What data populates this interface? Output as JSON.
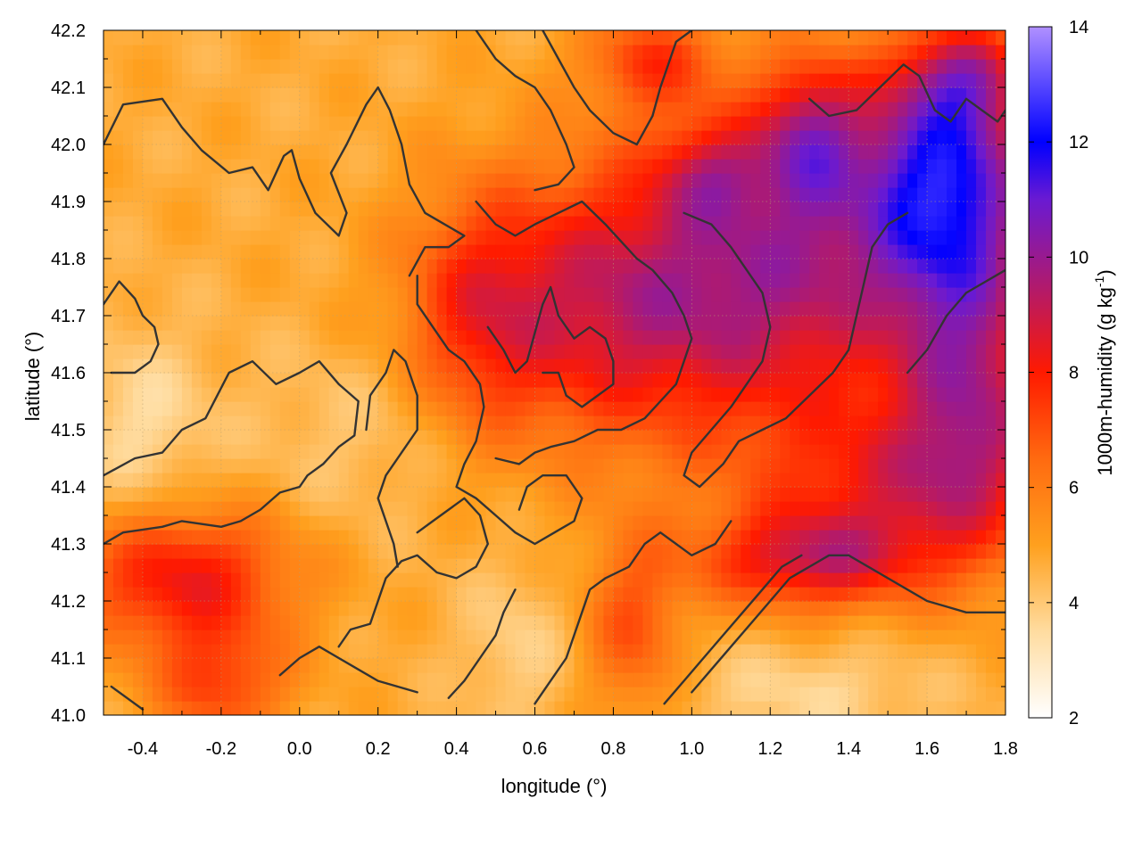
{
  "chart_data": {
    "type": "heatmap",
    "title": "",
    "xlabel": "longitude (°)",
    "ylabel": "latitude (°)",
    "colorbar_label_main": "1000m-humidity (g kg",
    "colorbar_label_sup": "-1",
    "colorbar_label_end": ")",
    "xlim": [
      -0.5,
      1.8
    ],
    "ylim": [
      41.0,
      42.2
    ],
    "clim": [
      2,
      14
    ],
    "grid": true,
    "x_ticks": [
      {
        "value": -0.4,
        "label": "-0.4"
      },
      {
        "value": -0.2,
        "label": "-0.2"
      },
      {
        "value": 0.0,
        "label": "0.0"
      },
      {
        "value": 0.2,
        "label": "0.2"
      },
      {
        "value": 0.4,
        "label": "0.4"
      },
      {
        "value": 0.6,
        "label": "0.6"
      },
      {
        "value": 0.8,
        "label": "0.8"
      },
      {
        "value": 1.0,
        "label": "1.0"
      },
      {
        "value": 1.2,
        "label": "1.2"
      },
      {
        "value": 1.4,
        "label": "1.4"
      },
      {
        "value": 1.6,
        "label": "1.6"
      },
      {
        "value": 1.8,
        "label": "1.8"
      }
    ],
    "y_ticks": [
      {
        "value": 41.0,
        "label": "41.0"
      },
      {
        "value": 41.1,
        "label": "41.1"
      },
      {
        "value": 41.2,
        "label": "41.2"
      },
      {
        "value": 41.3,
        "label": "41.3"
      },
      {
        "value": 41.4,
        "label": "41.4"
      },
      {
        "value": 41.5,
        "label": "41.5"
      },
      {
        "value": 41.6,
        "label": "41.6"
      },
      {
        "value": 41.7,
        "label": "41.7"
      },
      {
        "value": 41.8,
        "label": "41.8"
      },
      {
        "value": 41.9,
        "label": "41.9"
      },
      {
        "value": 42.0,
        "label": "42.0"
      },
      {
        "value": 42.1,
        "label": "42.1"
      },
      {
        "value": 42.2,
        "label": "42.2"
      }
    ],
    "colorbar_ticks": [
      {
        "value": 2,
        "label": "2"
      },
      {
        "value": 4,
        "label": "4"
      },
      {
        "value": 6,
        "label": "6"
      },
      {
        "value": 8,
        "label": "8"
      },
      {
        "value": 10,
        "label": "10"
      },
      {
        "value": 12,
        "label": "12"
      },
      {
        "value": 14,
        "label": "14"
      }
    ],
    "colormap": [
      {
        "value": 2,
        "color": "#ffffff"
      },
      {
        "value": 3.5,
        "color": "#ffdca0"
      },
      {
        "value": 5,
        "color": "#ffa01e"
      },
      {
        "value": 6.5,
        "color": "#ff6a10"
      },
      {
        "value": 8,
        "color": "#ff1a00"
      },
      {
        "value": 9.5,
        "color": "#b01a6e"
      },
      {
        "value": 11,
        "color": "#6a1ad2"
      },
      {
        "value": 12,
        "color": "#0000ff"
      },
      {
        "value": 14,
        "color": "#b090ff"
      }
    ],
    "field_blobs": [
      {
        "lon": 0.75,
        "lat": 41.72,
        "slon": 0.28,
        "slat": 0.17,
        "amp": 3.6
      },
      {
        "lon": 0.45,
        "lat": 41.7,
        "slon": 0.12,
        "slat": 0.14,
        "amp": 1.8
      },
      {
        "lon": 1.25,
        "lat": 41.78,
        "slon": 0.28,
        "slat": 0.2,
        "amp": 4.2
      },
      {
        "lon": 1.65,
        "lat": 41.95,
        "slon": 0.16,
        "slat": 0.15,
        "amp": 6.0
      },
      {
        "lon": 1.3,
        "lat": 42.02,
        "slon": 0.09,
        "slat": 0.09,
        "amp": 3.2
      },
      {
        "lon": 1.72,
        "lat": 41.58,
        "slon": 0.14,
        "slat": 0.2,
        "amp": 4.0
      },
      {
        "lon": 1.5,
        "lat": 41.4,
        "slon": 0.25,
        "slat": 0.1,
        "amp": 2.6
      },
      {
        "lon": 1.3,
        "lat": 41.27,
        "slon": 0.2,
        "slat": 0.06,
        "amp": 3.6
      },
      {
        "lon": -0.3,
        "lat": 41.24,
        "slon": 0.2,
        "slat": 0.09,
        "amp": 3.6
      },
      {
        "lon": -0.2,
        "lat": 41.05,
        "slon": 0.12,
        "slat": 0.07,
        "amp": 2.4
      },
      {
        "lon": 0.85,
        "lat": 41.15,
        "slon": 0.09,
        "slat": 0.12,
        "amp": 2.2
      },
      {
        "lon": 1.05,
        "lat": 41.95,
        "slon": 0.1,
        "slat": 0.06,
        "amp": 2.0
      },
      {
        "lon": 0.9,
        "lat": 42.15,
        "slon": 0.12,
        "slat": 0.06,
        "amp": 2.4
      },
      {
        "lon": 1.7,
        "lat": 42.12,
        "slon": 0.1,
        "slat": 0.06,
        "amp": 2.6
      },
      {
        "lon": -0.4,
        "lat": 41.5,
        "slon": 0.12,
        "slat": 0.12,
        "amp": -1.2
      },
      {
        "lon": 0.15,
        "lat": 41.5,
        "slon": 0.2,
        "slat": 0.12,
        "amp": -0.7
      },
      {
        "lon": 0.55,
        "lat": 41.12,
        "slon": 0.1,
        "slat": 0.1,
        "amp": -0.9
      },
      {
        "lon": 1.3,
        "lat": 41.04,
        "slon": 0.25,
        "slat": 0.06,
        "amp": -1.0
      }
    ],
    "field_base": 4.7,
    "field_ripple": 0.35,
    "contours": [
      [
        [
          -0.5,
          42.0
        ],
        [
          -0.45,
          42.07
        ],
        [
          -0.35,
          42.08
        ],
        [
          -0.3,
          42.03
        ],
        [
          -0.25,
          41.99
        ],
        [
          -0.18,
          41.95
        ],
        [
          -0.12,
          41.96
        ],
        [
          -0.08,
          41.92
        ],
        [
          -0.04,
          41.98
        ],
        [
          -0.02,
          41.99
        ],
        [
          0.0,
          41.94
        ],
        [
          0.04,
          41.88
        ],
        [
          0.1,
          41.84
        ],
        [
          0.12,
          41.88
        ],
        [
          0.08,
          41.95
        ],
        [
          0.12,
          42.0
        ],
        [
          0.17,
          42.07
        ],
        [
          0.2,
          42.1
        ],
        [
          0.23,
          42.06
        ],
        [
          0.26,
          42.0
        ],
        [
          0.28,
          41.93
        ],
        [
          0.32,
          41.88
        ],
        [
          0.42,
          41.84
        ],
        [
          0.38,
          41.82
        ],
        [
          0.32,
          41.82
        ],
        [
          0.28,
          41.77
        ]
      ],
      [
        [
          -0.5,
          41.72
        ],
        [
          -0.46,
          41.76
        ],
        [
          -0.42,
          41.73
        ],
        [
          -0.4,
          41.7
        ],
        [
          -0.37,
          41.68
        ],
        [
          -0.36,
          41.65
        ],
        [
          -0.38,
          41.62
        ],
        [
          -0.42,
          41.6
        ],
        [
          -0.48,
          41.6
        ]
      ],
      [
        [
          -0.5,
          41.42
        ],
        [
          -0.42,
          41.45
        ],
        [
          -0.35,
          41.46
        ],
        [
          -0.3,
          41.5
        ],
        [
          -0.24,
          41.52
        ],
        [
          -0.18,
          41.6
        ],
        [
          -0.12,
          41.62
        ],
        [
          -0.06,
          41.58
        ],
        [
          0.0,
          41.6
        ],
        [
          0.05,
          41.62
        ],
        [
          0.1,
          41.58
        ],
        [
          0.15,
          41.55
        ],
        [
          0.14,
          41.49
        ],
        [
          0.1,
          41.47
        ],
        [
          0.06,
          41.44
        ],
        [
          0.02,
          41.42
        ],
        [
          0.0,
          41.4
        ],
        [
          -0.05,
          41.39
        ],
        [
          -0.1,
          41.36
        ],
        [
          -0.15,
          41.34
        ],
        [
          -0.2,
          41.33
        ],
        [
          -0.3,
          41.34
        ],
        [
          -0.35,
          41.33
        ],
        [
          -0.45,
          41.32
        ],
        [
          -0.5,
          41.3
        ]
      ],
      [
        [
          -0.48,
          41.05
        ],
        [
          -0.44,
          41.03
        ],
        [
          -0.4,
          41.01
        ]
      ],
      [
        [
          0.1,
          41.12
        ],
        [
          0.13,
          41.15
        ],
        [
          0.18,
          41.16
        ],
        [
          0.2,
          41.2
        ],
        [
          0.22,
          41.24
        ],
        [
          0.26,
          41.27
        ],
        [
          0.3,
          41.28
        ],
        [
          0.35,
          41.25
        ],
        [
          0.4,
          41.24
        ],
        [
          0.45,
          41.26
        ],
        [
          0.48,
          41.3
        ],
        [
          0.46,
          41.35
        ],
        [
          0.42,
          41.38
        ],
        [
          0.38,
          41.36
        ],
        [
          0.34,
          41.34
        ],
        [
          0.3,
          41.32
        ]
      ],
      [
        [
          0.25,
          41.26
        ],
        [
          0.24,
          41.3
        ],
        [
          0.22,
          41.34
        ],
        [
          0.2,
          41.38
        ],
        [
          0.22,
          41.42
        ],
        [
          0.26,
          41.46
        ],
        [
          0.3,
          41.5
        ],
        [
          0.3,
          41.56
        ],
        [
          0.27,
          41.62
        ],
        [
          0.24,
          41.64
        ],
        [
          0.22,
          41.6
        ],
        [
          0.18,
          41.56
        ],
        [
          0.17,
          41.5
        ]
      ],
      [
        [
          0.3,
          41.77
        ],
        [
          0.3,
          41.72
        ],
        [
          0.34,
          41.68
        ],
        [
          0.38,
          41.64
        ],
        [
          0.42,
          41.62
        ],
        [
          0.46,
          41.58
        ],
        [
          0.47,
          41.54
        ],
        [
          0.45,
          41.48
        ],
        [
          0.42,
          41.44
        ],
        [
          0.4,
          41.4
        ],
        [
          0.45,
          41.38
        ],
        [
          0.5,
          41.35
        ],
        [
          0.55,
          41.32
        ],
        [
          0.6,
          41.3
        ],
        [
          0.65,
          41.32
        ],
        [
          0.7,
          41.34
        ],
        [
          0.72,
          41.38
        ],
        [
          0.68,
          41.42
        ],
        [
          0.62,
          41.42
        ],
        [
          0.58,
          41.4
        ],
        [
          0.56,
          41.36
        ]
      ],
      [
        [
          0.45,
          41.9
        ],
        [
          0.5,
          41.86
        ],
        [
          0.55,
          41.84
        ],
        [
          0.6,
          41.86
        ],
        [
          0.66,
          41.88
        ],
        [
          0.72,
          41.9
        ],
        [
          0.78,
          41.86
        ],
        [
          0.82,
          41.83
        ],
        [
          0.86,
          41.8
        ],
        [
          0.9,
          41.78
        ],
        [
          0.95,
          41.74
        ],
        [
          0.98,
          41.7
        ],
        [
          1.0,
          41.66
        ],
        [
          0.98,
          41.62
        ],
        [
          0.96,
          41.58
        ],
        [
          0.92,
          41.55
        ],
        [
          0.88,
          41.52
        ],
        [
          0.82,
          41.5
        ],
        [
          0.76,
          41.5
        ],
        [
          0.7,
          41.48
        ],
        [
          0.64,
          41.47
        ],
        [
          0.6,
          41.46
        ],
        [
          0.56,
          41.44
        ],
        [
          0.5,
          41.45
        ]
      ],
      [
        [
          0.48,
          41.68
        ],
        [
          0.52,
          41.64
        ],
        [
          0.55,
          41.6
        ],
        [
          0.58,
          41.62
        ],
        [
          0.6,
          41.67
        ],
        [
          0.62,
          41.72
        ],
        [
          0.64,
          41.75
        ],
        [
          0.66,
          41.7
        ],
        [
          0.7,
          41.66
        ],
        [
          0.74,
          41.68
        ],
        [
          0.78,
          41.66
        ],
        [
          0.8,
          41.62
        ],
        [
          0.8,
          41.58
        ],
        [
          0.76,
          41.56
        ],
        [
          0.72,
          41.54
        ],
        [
          0.68,
          41.56
        ],
        [
          0.66,
          41.6
        ],
        [
          0.62,
          41.6
        ]
      ],
      [
        [
          0.98,
          41.88
        ],
        [
          1.05,
          41.86
        ],
        [
          1.1,
          41.82
        ],
        [
          1.14,
          41.78
        ],
        [
          1.18,
          41.74
        ],
        [
          1.2,
          41.68
        ],
        [
          1.18,
          41.62
        ],
        [
          1.14,
          41.58
        ],
        [
          1.1,
          41.54
        ],
        [
          1.05,
          41.5
        ],
        [
          1.0,
          41.46
        ],
        [
          0.98,
          41.42
        ],
        [
          1.02,
          41.4
        ],
        [
          1.08,
          41.44
        ],
        [
          1.12,
          41.48
        ],
        [
          1.18,
          41.5
        ],
        [
          1.24,
          41.52
        ],
        [
          1.3,
          41.56
        ],
        [
          1.36,
          41.6
        ],
        [
          1.4,
          41.64
        ],
        [
          1.42,
          41.7
        ],
        [
          1.44,
          41.76
        ],
        [
          1.46,
          41.82
        ],
        [
          1.5,
          41.86
        ],
        [
          1.55,
          41.88
        ]
      ],
      [
        [
          1.0,
          41.04
        ],
        [
          1.05,
          41.08
        ],
        [
          1.1,
          41.12
        ],
        [
          1.15,
          41.16
        ],
        [
          1.2,
          41.2
        ],
        [
          1.25,
          41.24
        ],
        [
          1.3,
          41.26
        ],
        [
          1.35,
          41.28
        ],
        [
          1.4,
          41.28
        ],
        [
          1.45,
          41.26
        ],
        [
          1.5,
          41.24
        ],
        [
          1.55,
          41.22
        ],
        [
          1.6,
          41.2
        ],
        [
          1.65,
          41.19
        ],
        [
          1.7,
          41.18
        ],
        [
          1.75,
          41.18
        ],
        [
          1.8,
          41.18
        ]
      ],
      [
        [
          0.93,
          41.02
        ],
        [
          0.98,
          41.06
        ],
        [
          1.03,
          41.1
        ],
        [
          1.08,
          41.14
        ],
        [
          1.13,
          41.18
        ],
        [
          1.18,
          41.22
        ],
        [
          1.23,
          41.26
        ],
        [
          1.28,
          41.28
        ]
      ],
      [
        [
          1.3,
          42.08
        ],
        [
          1.35,
          42.05
        ],
        [
          1.42,
          42.06
        ],
        [
          1.48,
          42.1
        ],
        [
          1.54,
          42.14
        ],
        [
          1.58,
          42.12
        ],
        [
          1.62,
          42.06
        ],
        [
          1.66,
          42.04
        ],
        [
          1.7,
          42.08
        ],
        [
          1.74,
          42.06
        ],
        [
          1.78,
          42.04
        ],
        [
          1.8,
          42.06
        ]
      ],
      [
        [
          1.55,
          41.6
        ],
        [
          1.6,
          41.64
        ],
        [
          1.65,
          41.7
        ],
        [
          1.7,
          41.74
        ],
        [
          1.75,
          41.76
        ],
        [
          1.8,
          41.78
        ]
      ],
      [
        [
          0.62,
          42.2
        ],
        [
          0.66,
          42.15
        ],
        [
          0.7,
          42.1
        ],
        [
          0.74,
          42.06
        ],
        [
          0.8,
          42.02
        ],
        [
          0.86,
          42.0
        ],
        [
          0.9,
          42.05
        ],
        [
          0.92,
          42.1
        ],
        [
          0.94,
          42.14
        ],
        [
          0.96,
          42.18
        ],
        [
          1.0,
          42.2
        ]
      ],
      [
        [
          0.45,
          42.2
        ],
        [
          0.5,
          42.15
        ],
        [
          0.55,
          42.12
        ],
        [
          0.6,
          42.1
        ],
        [
          0.64,
          42.06
        ],
        [
          0.68,
          42.0
        ],
        [
          0.7,
          41.96
        ],
        [
          0.66,
          41.93
        ],
        [
          0.6,
          41.92
        ]
      ],
      [
        [
          -0.05,
          41.07
        ],
        [
          0.0,
          41.1
        ],
        [
          0.05,
          41.12
        ],
        [
          0.1,
          41.1
        ],
        [
          0.15,
          41.08
        ],
        [
          0.2,
          41.06
        ],
        [
          0.25,
          41.05
        ],
        [
          0.3,
          41.04
        ]
      ],
      [
        [
          0.38,
          41.03
        ],
        [
          0.42,
          41.06
        ],
        [
          0.46,
          41.1
        ],
        [
          0.5,
          41.14
        ],
        [
          0.52,
          41.18
        ],
        [
          0.55,
          41.22
        ]
      ],
      [
        [
          0.6,
          41.02
        ],
        [
          0.64,
          41.06
        ],
        [
          0.68,
          41.1
        ],
        [
          0.7,
          41.14
        ],
        [
          0.72,
          41.18
        ],
        [
          0.74,
          41.22
        ],
        [
          0.78,
          41.24
        ],
        [
          0.84,
          41.26
        ],
        [
          0.88,
          41.3
        ],
        [
          0.92,
          41.32
        ],
        [
          0.96,
          41.3
        ],
        [
          1.0,
          41.28
        ],
        [
          1.06,
          41.3
        ],
        [
          1.1,
          41.34
        ]
      ]
    ]
  }
}
